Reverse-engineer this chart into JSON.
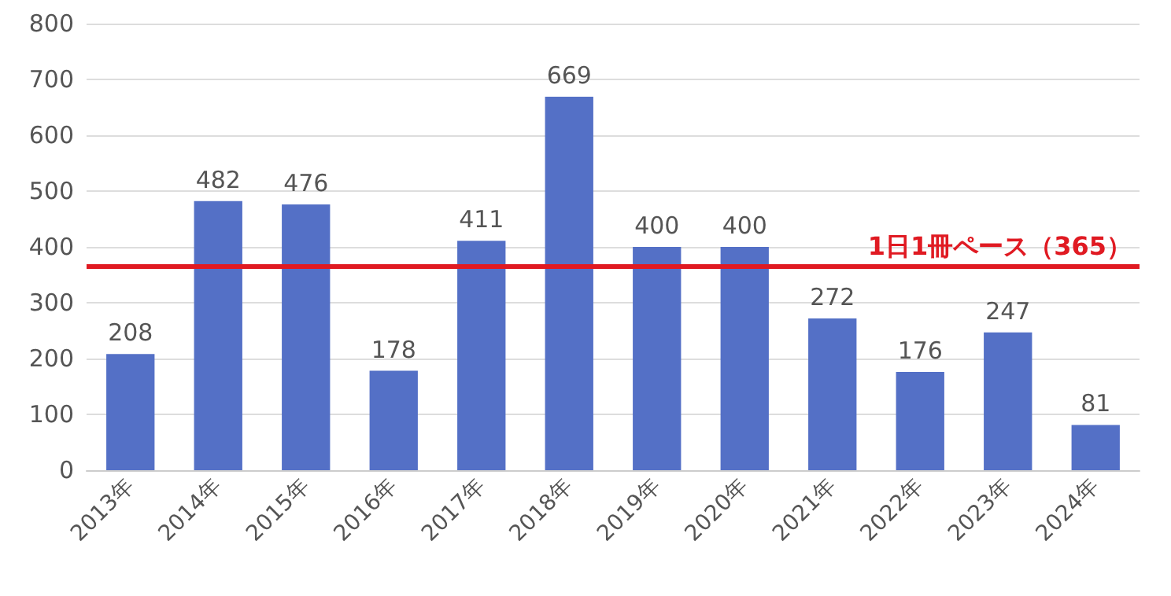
{
  "chart_data": {
    "type": "bar",
    "categories": [
      "2013年",
      "2014年",
      "2015年",
      "2016年",
      "2017年",
      "2018年",
      "2019年",
      "2020年",
      "2021年",
      "2022年",
      "2023年",
      "2024年"
    ],
    "values": [
      208,
      482,
      476,
      178,
      411,
      669,
      400,
      400,
      272,
      176,
      247,
      81
    ],
    "color": "#5470c6",
    "ylim": [
      0,
      800
    ],
    "yticks": [
      0,
      100,
      200,
      300,
      400,
      500,
      600,
      700,
      800
    ],
    "grid": "y",
    "data_labels": true,
    "ref_lines": [
      {
        "axis": "y",
        "value": 365,
        "label": "1日1冊ペース（365）",
        "color": "#e01a22",
        "line_style": "solid"
      }
    ]
  }
}
